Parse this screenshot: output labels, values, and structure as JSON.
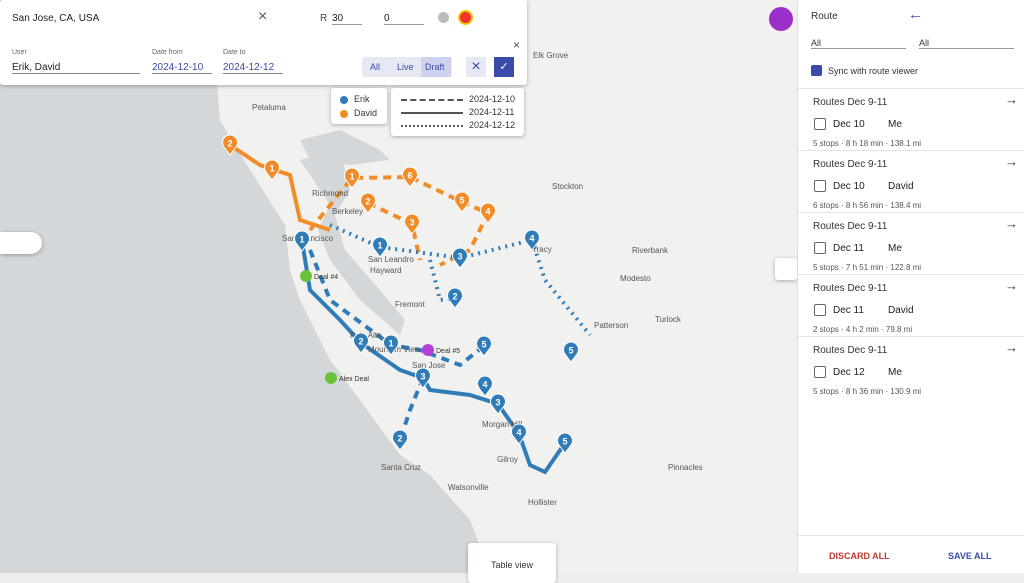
{
  "search": {
    "location": "San Jose, CA, USA",
    "radius_label": "R",
    "radius": "30",
    "count": "0"
  },
  "filters": {
    "user_label": "User",
    "user": "Erik, David",
    "date_from_label": "Date from",
    "date_from": "2024-12-10",
    "date_to_label": "Date to",
    "date_to": "2024-12-12",
    "modes": [
      "All",
      "Live",
      "Draft"
    ]
  },
  "legend": {
    "users": [
      {
        "name": "Erik",
        "color": "#2f7cb8"
      },
      {
        "name": "David",
        "color": "#f28c28"
      }
    ],
    "dates": [
      {
        "date": "2024-12-10",
        "style": "dashed"
      },
      {
        "date": "2024-12-11",
        "style": "solid"
      },
      {
        "date": "2024-12-12",
        "style": "dotted"
      }
    ]
  },
  "map": {
    "places": [
      "Petaluma",
      "Richmond",
      "Berkeley",
      "San Francisco",
      "San Leandro",
      "Hayward",
      "Fremont",
      "Palo Alto",
      "Mountain View",
      "San Jose",
      "Santa Cruz",
      "Watsonville",
      "Gilroy",
      "Hollister",
      "Morgan Hill",
      "Stockton",
      "Elk Grove",
      "Modesto",
      "Turlock",
      "Tracy",
      "Riverbank",
      "Patterson",
      "Pinnacles"
    ],
    "deals": [
      "Deal #4",
      "Deal #5",
      "Alex Deal"
    ],
    "markers": [
      {
        "label": "2",
        "user": 1
      },
      {
        "label": "1",
        "user": 1
      },
      {
        "label": "1",
        "user": 1
      },
      {
        "label": "6",
        "user": 1
      },
      {
        "label": "5",
        "user": 1
      },
      {
        "label": "2",
        "user": 1
      },
      {
        "label": "3",
        "user": 1
      },
      {
        "label": "4",
        "user": 1
      },
      {
        "label": "1",
        "user": 0
      },
      {
        "label": "1",
        "user": 0
      },
      {
        "label": "3",
        "user": 0
      },
      {
        "label": "4",
        "user": 0
      },
      {
        "label": "2",
        "user": 0
      },
      {
        "label": "2",
        "user": 0
      },
      {
        "label": "1",
        "user": 0
      },
      {
        "label": "5",
        "user": 0
      },
      {
        "label": "3",
        "user": 0
      },
      {
        "label": "4",
        "user": 0
      },
      {
        "label": "3",
        "user": 0
      },
      {
        "label": "4",
        "user": 0
      },
      {
        "label": "5",
        "user": 0
      },
      {
        "label": "2",
        "user": 0
      },
      {
        "label": "5",
        "user": 0
      }
    ],
    "table_view": "Table view"
  },
  "panel": {
    "title": "Route",
    "filter_a": "All",
    "filter_b": "All",
    "sync": "Sync with route viewer",
    "routes": [
      {
        "name": "Routes Dec 9-11",
        "date": "Dec 10",
        "user": "Me",
        "summary": "5 stops · 8 h 18 min · 138.1 mi"
      },
      {
        "name": "Routes Dec 9-11",
        "date": "Dec 10",
        "user": "David",
        "summary": "6 stops · 8 h 56 min · 138.4 mi"
      },
      {
        "name": "Routes Dec 9-11",
        "date": "Dec 11",
        "user": "Me",
        "summary": "5 stops · 7 h 51 min · 122.8 mi"
      },
      {
        "name": "Routes Dec 9-11",
        "date": "Dec 11",
        "user": "David",
        "summary": "2 stops · 4 h 2 min · 79.8 mi"
      },
      {
        "name": "Routes Dec 9-11",
        "date": "Dec 12",
        "user": "Me",
        "summary": "5 stops · 8 h 36 min · 130.9 mi"
      }
    ],
    "discard": "DISCARD ALL",
    "save": "SAVE ALL"
  }
}
